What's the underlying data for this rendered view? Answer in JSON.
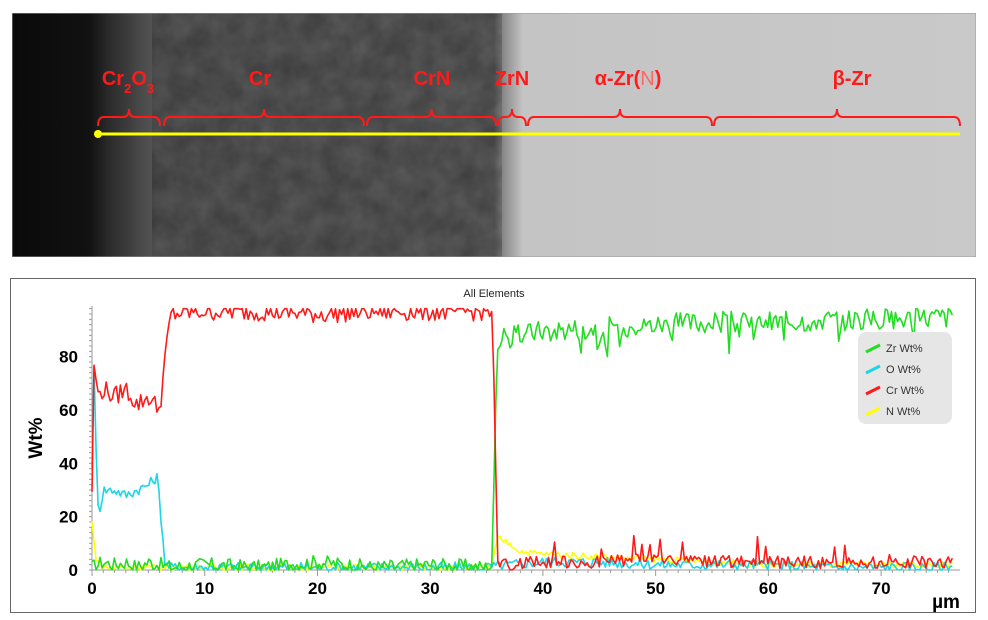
{
  "micrograph": {
    "phase_labels": [
      {
        "name": "cr2o3",
        "parts": [
          {
            "t": "Cr"
          },
          {
            "t": "2",
            "sub": true
          },
          {
            "t": "O"
          },
          {
            "t": "3",
            "sub": true
          }
        ],
        "color": "#ff1a1a"
      },
      {
        "name": "cr",
        "parts": [
          {
            "t": "Cr"
          }
        ],
        "color": "#ff1a1a"
      },
      {
        "name": "crn",
        "parts": [
          {
            "t": "CrN"
          }
        ],
        "color": "#ff1a1a"
      },
      {
        "name": "zrn",
        "parts": [
          {
            "t": "ZrN"
          }
        ],
        "color": "#ff1a1a"
      },
      {
        "name": "alpha-zr-n",
        "parts": [
          {
            "t": "α-Zr("
          },
          {
            "t": "N",
            "light": true
          },
          {
            "t": ")"
          }
        ],
        "color": "#ff1a1a"
      },
      {
        "name": "beta-zr",
        "parts": [
          {
            "t": "β-Zr"
          }
        ],
        "color": "#ff1a1a"
      }
    ],
    "scan_line_color": "#ffff00",
    "bracket_color": "#ff1a1a"
  },
  "chart_data": {
    "type": "line",
    "title": "All Elements",
    "xlabel": "µm",
    "ylabel": "Wt%",
    "xlim": [
      0,
      77
    ],
    "ylim": [
      0,
      99
    ],
    "xticks": [
      0,
      10,
      20,
      30,
      40,
      50,
      60,
      70
    ],
    "yticks": [
      0,
      20,
      40,
      60,
      80
    ],
    "legend_position": "right",
    "series": [
      {
        "name": "Zr Wt%",
        "color": "#22dd22",
        "x": [
          0,
          1,
          2,
          3,
          4,
          5,
          6,
          7,
          10,
          15,
          20,
          25,
          30,
          35,
          35.5,
          35.8,
          36,
          37,
          40,
          45,
          50,
          55,
          60,
          65,
          70,
          75,
          77
        ],
        "y": [
          1,
          3,
          2,
          3,
          1,
          3,
          2,
          1,
          2,
          1,
          3,
          1,
          2,
          1,
          2,
          60,
          86,
          87,
          90,
          91,
          92,
          93,
          93,
          94,
          94,
          95,
          95
        ]
      },
      {
        "name": "O Wt%",
        "color": "#1ad6e6",
        "x": [
          0,
          0.1,
          0.3,
          0.6,
          1,
          2,
          3,
          4,
          5,
          5.8,
          6.5,
          7,
          10,
          20,
          30,
          35,
          37,
          40,
          45,
          50,
          55,
          60,
          65,
          70,
          75,
          77
        ],
        "y": [
          40,
          90,
          50,
          20,
          30,
          30,
          28,
          30,
          32,
          35,
          2,
          1,
          1,
          1,
          1,
          1,
          2,
          3,
          3,
          2,
          2,
          2,
          1,
          1,
          1,
          1
        ]
      },
      {
        "name": "Cr Wt%",
        "color": "#ff1a1a",
        "x": [
          0,
          0.2,
          0.5,
          1,
          2,
          3,
          4,
          5,
          6,
          6.5,
          7,
          10,
          15,
          20,
          25,
          30,
          35,
          35.5,
          36,
          37,
          40,
          45,
          50,
          55,
          60,
          65,
          70,
          75,
          77
        ],
        "y": [
          30,
          80,
          65,
          68,
          65,
          68,
          62,
          65,
          60,
          80,
          96,
          97,
          97,
          96,
          97,
          97,
          97,
          97,
          2,
          2,
          3,
          3,
          4,
          3,
          3,
          3,
          3,
          3,
          2
        ]
      },
      {
        "name": "N Wt%",
        "color": "#ffff00",
        "x": [
          0,
          0.3,
          1,
          5,
          10,
          20,
          30,
          35,
          35.5,
          36,
          37,
          38,
          40,
          45,
          50,
          55,
          60,
          65,
          70,
          75,
          77
        ],
        "y": [
          18,
          5,
          1,
          1,
          1,
          1,
          1,
          1,
          2,
          12,
          10,
          7,
          6,
          5,
          4,
          3,
          2,
          2,
          2,
          2,
          2
        ]
      }
    ]
  }
}
